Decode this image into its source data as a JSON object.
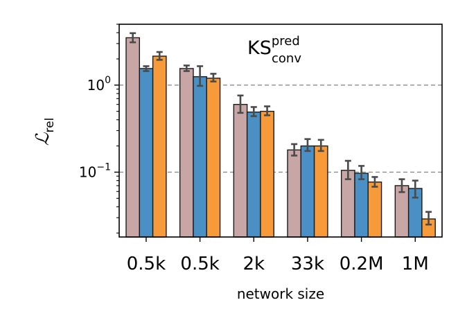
{
  "chart_data": {
    "type": "bar",
    "annotation": {
      "base": "KS",
      "sup": "pred",
      "sub": "conv"
    },
    "xlabel": "network size",
    "ylabel": {
      "main": "ℒ",
      "sub": "rel"
    },
    "yscale": "log",
    "ylim": [
      0.018,
      5.0
    ],
    "yticks": [
      {
        "value": 1.0,
        "base": "10",
        "exp": "0"
      },
      {
        "value": 0.1,
        "base": "10",
        "exp": "−1"
      }
    ],
    "gridlines": [
      1.0,
      0.1
    ],
    "categories": [
      "0.5k",
      "0.5k",
      "2k",
      "33k",
      "0.2M",
      "1M"
    ],
    "series": [
      {
        "color": "#c9a6a6",
        "values": [
          3.5,
          1.55,
          0.6,
          0.18,
          0.105,
          0.07
        ],
        "err_low": [
          3.1,
          1.45,
          0.48,
          0.155,
          0.083,
          0.059
        ],
        "err_high": [
          3.95,
          1.68,
          0.76,
          0.21,
          0.135,
          0.083
        ]
      },
      {
        "color": "#4a90c4",
        "values": [
          1.55,
          1.25,
          0.49,
          0.2,
          0.097,
          0.065
        ],
        "err_low": [
          1.45,
          0.98,
          0.44,
          0.175,
          0.083,
          0.051
        ],
        "err_high": [
          1.65,
          1.65,
          0.56,
          0.24,
          0.118,
          0.08
        ]
      },
      {
        "color": "#f79a3a",
        "values": [
          2.15,
          1.2,
          0.5,
          0.2,
          0.077,
          0.029
        ],
        "err_low": [
          1.95,
          1.1,
          0.45,
          0.175,
          0.068,
          0.025
        ],
        "err_high": [
          2.4,
          1.35,
          0.57,
          0.235,
          0.088,
          0.035
        ]
      }
    ]
  }
}
